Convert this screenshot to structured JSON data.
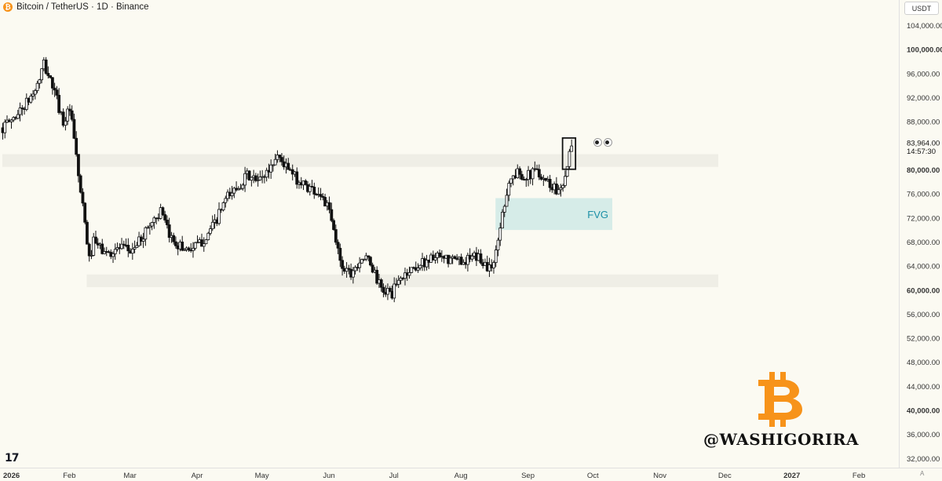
{
  "header": {
    "symbol_icon": "bitcoin-coin-icon",
    "symbol_icon_glyph": "₿",
    "title": "Bitcoin / TetherUS · 1D · Binance"
  },
  "currency_button": "USDT",
  "auto_label": "A",
  "tradingview_logo": "17",
  "watermark": {
    "icon": "bitcoin-logo-icon",
    "text": "@WASHIGORIRA"
  },
  "annotation_icon": "eyes-emoji-icon",
  "colors": {
    "background": "#fbfaf2",
    "candles": "#111111",
    "zone": "#efeee6",
    "fvg_fill": "#d6ece8",
    "fvg_text": "#1a8fa6",
    "watermark_orange": "#f7931a"
  },
  "chart_data": {
    "type": "candlestick",
    "title": "Bitcoin / TetherUS · 1D · Binance",
    "x_ticks": [
      "2026",
      "Feb",
      "Mar",
      "Apr",
      "May",
      "Jun",
      "Jul",
      "Aug",
      "Sep",
      "Oct",
      "Nov",
      "Dec",
      "2027",
      "Feb"
    ],
    "x_tick_dates": [
      "2026-01-01",
      "2026-02-01",
      "2026-03-01",
      "2026-04-01",
      "2026-05-01",
      "2026-06-01",
      "2026-07-01",
      "2026-08-01",
      "2026-09-01",
      "2026-10-01",
      "2026-11-01",
      "2026-12-01",
      "2027-01-01",
      "2027-02-01"
    ],
    "y_ticks": [
      "104,000.00",
      "100,000.00",
      "96,000.00",
      "92,000.00",
      "88,000.00",
      "80,000.00",
      "76,000.00",
      "72,000.00",
      "68,000.00",
      "64,000.00",
      "60,000.00",
      "56,000.00",
      "52,000.00",
      "48,000.00",
      "44,000.00",
      "40,000.00",
      "36,000.00",
      "32,000.00"
    ],
    "y_tick_values": [
      104000,
      100000,
      96000,
      92000,
      88000,
      80000,
      76000,
      72000,
      68000,
      64000,
      60000,
      56000,
      52000,
      48000,
      44000,
      40000,
      36000,
      32000
    ],
    "y_range": [
      31000,
      106500
    ],
    "x_range": [
      "2026-01-01",
      "2027-02-26"
    ],
    "last_price": {
      "value": 83964,
      "label": "83,964.00",
      "countdown": "14:57:30"
    },
    "zones": [
      {
        "from": 80500,
        "to": 82600,
        "x_start": "2026-01-01",
        "x_end": "2026-11-28"
      },
      {
        "from": 60500,
        "to": 62600,
        "x_start": "2026-02-09",
        "x_end": "2026-11-28"
      },
      {
        "from": 70000,
        "to": 75300,
        "x_start": "2026-08-17",
        "x_end": "2026-10-10",
        "label": "FVG"
      }
    ],
    "highlight_box": {
      "x_start": "2026-09-17",
      "x_end": "2026-09-23",
      "from": 80100,
      "to": 85300
    },
    "close_path": [
      [
        "2026-01-01",
        87000
      ],
      [
        "2026-01-07",
        89000
      ],
      [
        "2026-01-13",
        91500
      ],
      [
        "2026-01-17",
        94000
      ],
      [
        "2026-01-20",
        97500
      ],
      [
        "2026-01-24",
        94000
      ],
      [
        "2026-01-29",
        88000
      ],
      [
        "2026-02-01",
        90000
      ],
      [
        "2026-02-03",
        85000
      ],
      [
        "2026-02-05",
        79000
      ],
      [
        "2026-02-08",
        71000
      ],
      [
        "2026-02-10",
        65000
      ],
      [
        "2026-02-12",
        68000
      ],
      [
        "2026-02-18",
        66000
      ],
      [
        "2026-02-24",
        67000
      ],
      [
        "2026-03-01",
        66500
      ],
      [
        "2026-03-05",
        68000
      ],
      [
        "2026-03-10",
        71000
      ],
      [
        "2026-03-15",
        73000
      ],
      [
        "2026-03-19",
        69000
      ],
      [
        "2026-03-25",
        67000
      ],
      [
        "2026-03-30",
        67000
      ],
      [
        "2026-04-03",
        68000
      ],
      [
        "2026-04-09",
        71000
      ],
      [
        "2026-04-14",
        75000
      ],
      [
        "2026-04-19",
        77000
      ],
      [
        "2026-04-24",
        79000
      ],
      [
        "2026-04-29",
        78000
      ],
      [
        "2026-05-04",
        80000
      ],
      [
        "2026-05-08",
        82500
      ],
      [
        "2026-05-13",
        80000
      ],
      [
        "2026-05-18",
        78000
      ],
      [
        "2026-05-23",
        77000
      ],
      [
        "2026-05-28",
        76000
      ],
      [
        "2026-06-01",
        73000
      ],
      [
        "2026-06-04",
        68000
      ],
      [
        "2026-06-07",
        64000
      ],
      [
        "2026-06-11",
        63000
      ],
      [
        "2026-06-16",
        65500
      ],
      [
        "2026-06-20",
        64500
      ],
      [
        "2026-06-25",
        60000
      ],
      [
        "2026-06-30",
        59500
      ],
      [
        "2026-07-04",
        62000
      ],
      [
        "2026-07-09",
        63500
      ],
      [
        "2026-07-14",
        64500
      ],
      [
        "2026-07-19",
        65500
      ],
      [
        "2026-07-24",
        65000
      ],
      [
        "2026-07-29",
        65000
      ],
      [
        "2026-08-03",
        65000
      ],
      [
        "2026-08-09",
        65500
      ],
      [
        "2026-08-14",
        63500
      ],
      [
        "2026-08-17",
        66000
      ],
      [
        "2026-08-20",
        73000
      ],
      [
        "2026-08-23",
        78000
      ],
      [
        "2026-08-27",
        79500
      ],
      [
        "2026-09-01",
        79000
      ],
      [
        "2026-09-05",
        80000
      ],
      [
        "2026-09-10",
        78000
      ],
      [
        "2026-09-15",
        76500
      ],
      [
        "2026-09-18",
        79000
      ],
      [
        "2026-09-20",
        82500
      ],
      [
        "2026-09-21",
        83964
      ]
    ]
  }
}
